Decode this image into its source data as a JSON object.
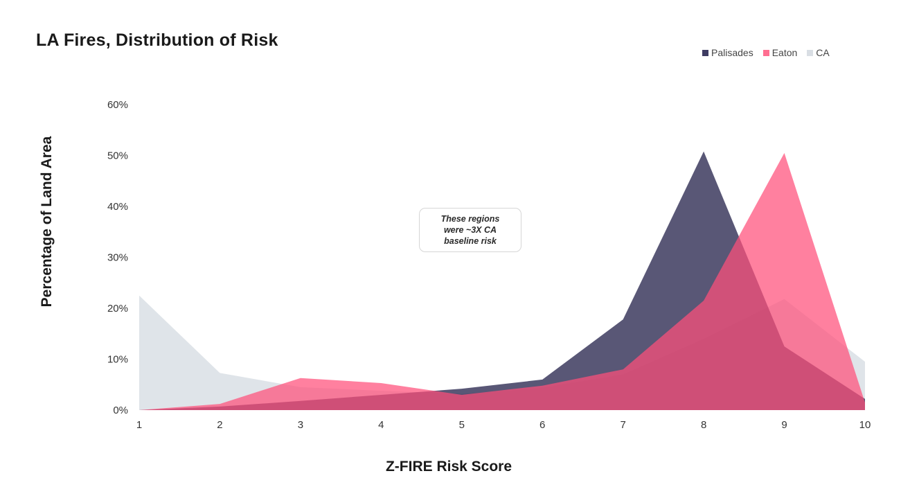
{
  "chart_data": {
    "type": "area",
    "title": "LA Fires, Distribution of Risk",
    "xlabel": "Z-FIRE Risk Score",
    "ylabel": "Percentage of Land Area",
    "x": [
      1,
      2,
      3,
      4,
      5,
      6,
      7,
      8,
      9,
      10
    ],
    "xlim": [
      1,
      10
    ],
    "ylim": [
      0,
      60
    ],
    "yticks": [
      0,
      10,
      20,
      30,
      40,
      50,
      60
    ],
    "ytick_format": "%",
    "grid": false,
    "legend_position": "top-right",
    "series": [
      {
        "name": "CA",
        "color": "#d3d9e0",
        "values": [
          22.5,
          7.3,
          4.5,
          3.8,
          3.2,
          4.4,
          7.0,
          14.0,
          21.8,
          9.5
        ]
      },
      {
        "name": "Palisades",
        "color": "#2a284f",
        "values": [
          0,
          0.7,
          1.8,
          3.0,
          4.2,
          6.0,
          17.8,
          50.8,
          12.5,
          2.2
        ]
      },
      {
        "name": "Eaton",
        "color": "#ff4f7a",
        "values": [
          0,
          1.2,
          6.3,
          5.3,
          3.0,
          4.8,
          8.0,
          21.5,
          50.5,
          1.5
        ]
      }
    ],
    "legend_order": [
      "Palisades",
      "Eaton",
      "CA"
    ],
    "annotation": "These regions were ~3X CA baseline risk"
  }
}
